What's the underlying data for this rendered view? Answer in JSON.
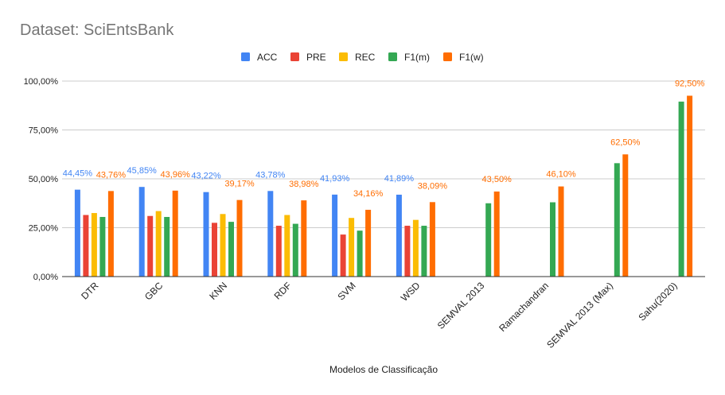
{
  "chart_data": {
    "type": "bar",
    "title": "Dataset: SciEntsBank",
    "xlabel": "Modelos de Classificação",
    "ylabel": "",
    "ylim": [
      0,
      100
    ],
    "yticks": [
      "0,00%",
      "25,00%",
      "50,00%",
      "75,00%",
      "100,00%"
    ],
    "legend_position": "top",
    "grid": true,
    "categories": [
      "DTR",
      "GBC",
      "KNN",
      "RDF",
      "SVM",
      "WSD",
      "SEMVAL 2013",
      "Ramachandran",
      "SEMVAL 2013 (Max)",
      "Sahu(2020)"
    ],
    "series": [
      {
        "name": "ACC",
        "color": "#4285f4",
        "values": [
          44.45,
          45.85,
          43.22,
          43.78,
          41.93,
          41.89,
          null,
          null,
          null,
          null
        ],
        "labels": [
          "44,45%",
          "45,85%",
          "43,22%",
          "43,78%",
          "41,93%",
          "41,89%",
          null,
          null,
          null,
          null
        ]
      },
      {
        "name": "PRE",
        "color": "#ea4335",
        "values": [
          31.5,
          31,
          27.5,
          26,
          21.5,
          26,
          null,
          null,
          null,
          null
        ],
        "labels": [
          null,
          null,
          null,
          null,
          null,
          null,
          null,
          null,
          null,
          null
        ]
      },
      {
        "name": "REC",
        "color": "#fbbc04",
        "values": [
          32.5,
          33.5,
          32,
          31.5,
          30,
          29,
          null,
          null,
          null,
          null
        ],
        "labels": [
          null,
          null,
          null,
          null,
          null,
          null,
          null,
          null,
          null,
          null
        ]
      },
      {
        "name": "F1(m)",
        "color": "#34a853",
        "values": [
          30.5,
          30.5,
          28,
          27,
          23.5,
          26,
          37.5,
          38,
          58,
          89.5
        ],
        "labels": [
          null,
          null,
          null,
          null,
          null,
          null,
          null,
          null,
          null,
          null
        ]
      },
      {
        "name": "F1(w)",
        "color": "#ff6d01",
        "values": [
          43.76,
          43.96,
          39.17,
          38.98,
          34.16,
          38.09,
          43.5,
          46.1,
          62.5,
          92.5
        ],
        "labels": [
          "43,76%",
          "43,96%",
          "39,17%",
          "38,98%",
          "34,16%",
          "38,09%",
          "43,50%",
          "46,10%",
          "62,50%",
          "92,50%"
        ]
      }
    ]
  }
}
